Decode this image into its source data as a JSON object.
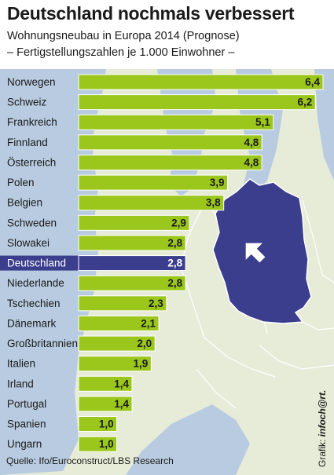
{
  "title": "Deutschland nochmals verbessert",
  "subtitle": "Wohnungsneubau in Europa 2014 (Prognose)",
  "subtitle2": "– Fertigstellungszahlen je 1.000 Einwohner –",
  "source": "Quelle: Ifo/Euroconstruct/LBS Research",
  "credit_prefix": "Grafik: ",
  "credit_brand": "infoch@rt.",
  "colors": {
    "bar": "#9bc71c",
    "highlight": "#3b3d8d",
    "label": "#1a1a1a",
    "land": "#e7ecd8",
    "sea": "#b8cbe0"
  },
  "chart_data": {
    "type": "bar",
    "orientation": "horizontal",
    "categories": [
      "Norwegen",
      "Schweiz",
      "Frankreich",
      "Finnland",
      "Österreich",
      "Polen",
      "Belgien",
      "Schweden",
      "Slowakei",
      "Deutschland",
      "Niederlande",
      "Tschechien",
      "Dänemark",
      "Großbritannien",
      "Italien",
      "Irland",
      "Portugal",
      "Spanien",
      "Ungarn"
    ],
    "values": [
      6.4,
      6.2,
      5.1,
      4.8,
      4.8,
      3.9,
      3.8,
      2.9,
      2.8,
      2.8,
      2.8,
      2.3,
      2.1,
      2.0,
      1.9,
      1.4,
      1.4,
      1.0,
      1.0
    ],
    "value_labels": [
      "6,4",
      "6,2",
      "5,1",
      "4,8",
      "4,8",
      "3,9",
      "3,8",
      "2,9",
      "2,8",
      "2,8",
      "2,8",
      "2,3",
      "2,1",
      "2,0",
      "1,9",
      "1,4",
      "1,4",
      "1,0",
      "1,0"
    ],
    "highlight": "Deutschland",
    "xlim": [
      0,
      6.4
    ]
  }
}
